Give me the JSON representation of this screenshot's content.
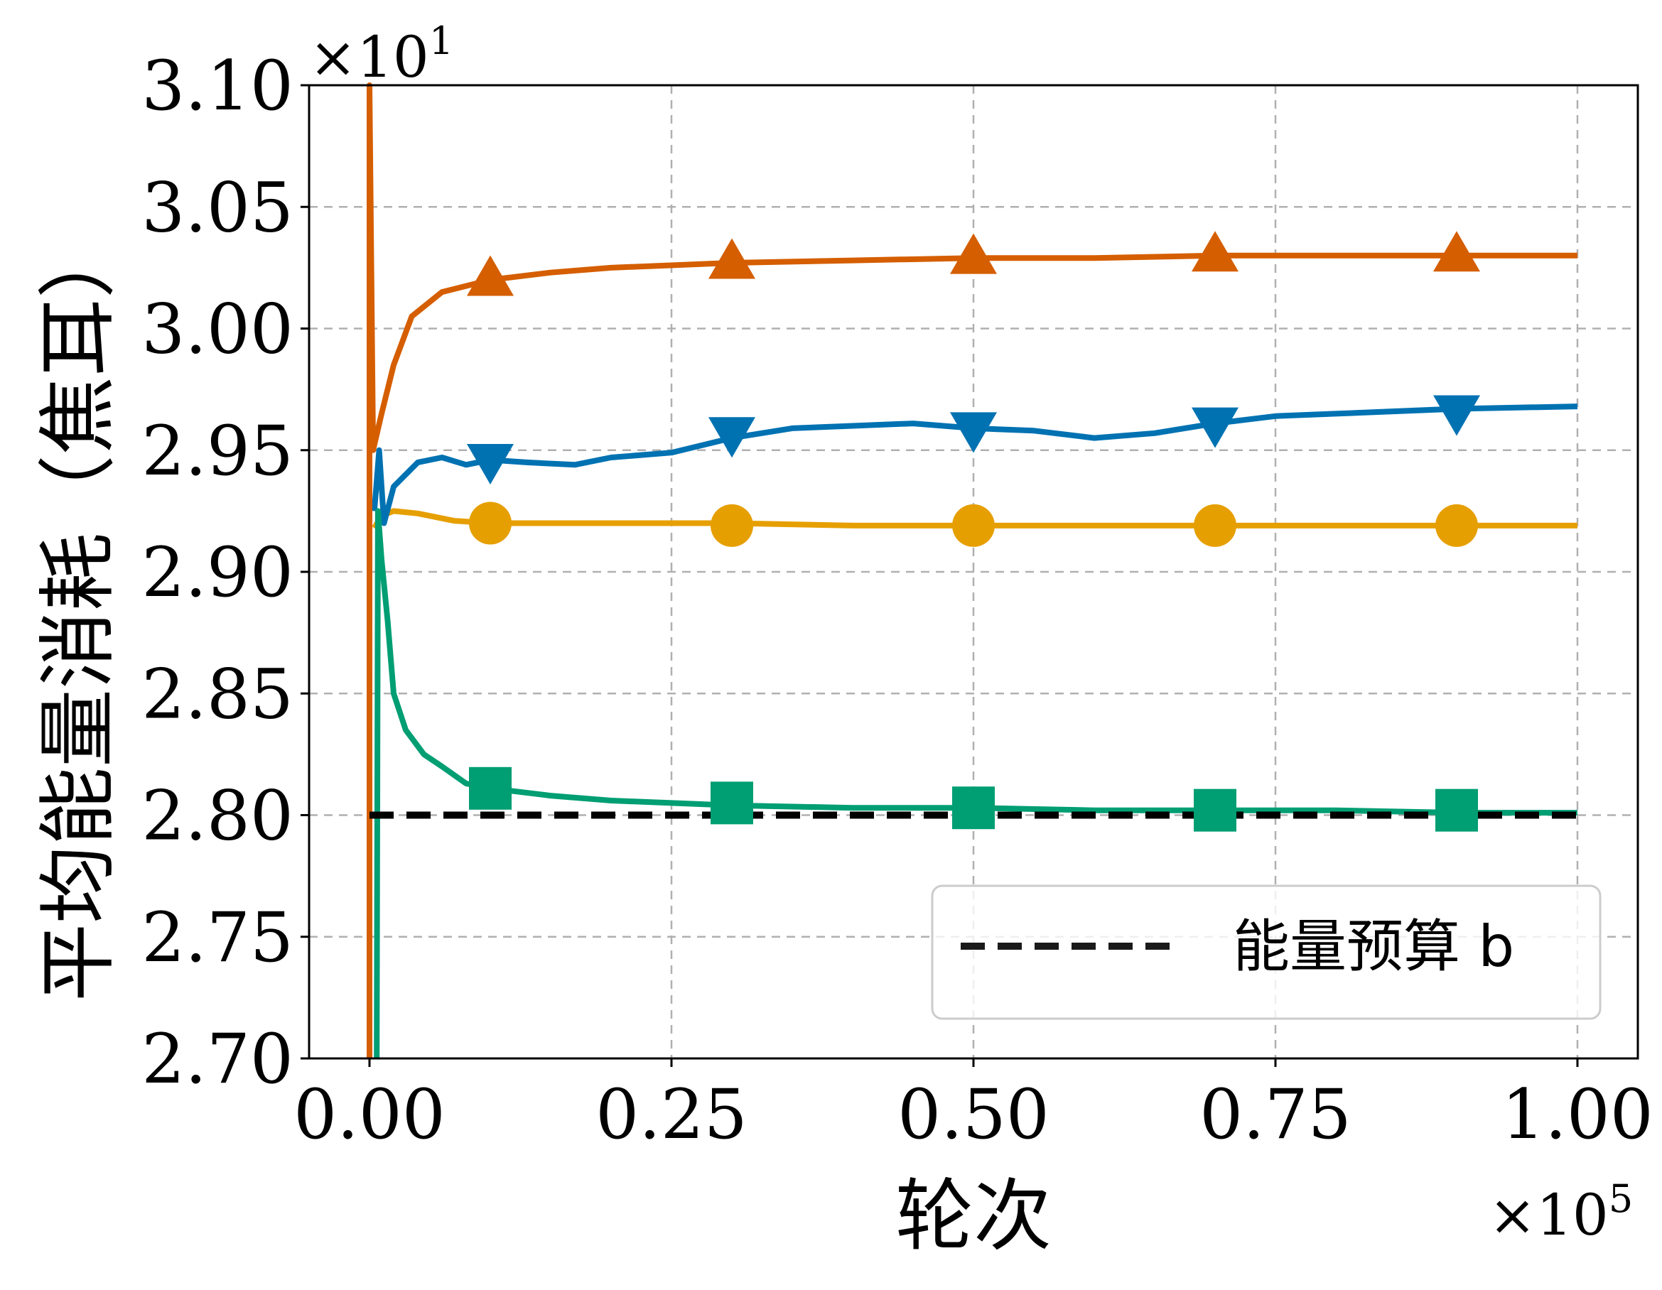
{
  "chart_data": {
    "type": "line",
    "xlabel": "轮次",
    "ylabel": "平均能量消耗（焦耳）",
    "x_multiplier": {
      "base": "×10",
      "exp": "5"
    },
    "y_multiplier": {
      "base": "×10",
      "exp": "1"
    },
    "xlim": [
      -0.05,
      1.05
    ],
    "ylim": [
      2.7,
      3.1
    ],
    "x_ticks": [
      0.0,
      0.25,
      0.5,
      0.75,
      1.0
    ],
    "x_tick_labels": [
      "0.00",
      "0.25",
      "0.50",
      "0.75",
      "1.00"
    ],
    "y_ticks": [
      2.7,
      2.75,
      2.8,
      2.85,
      2.9,
      2.95,
      3.0,
      3.05,
      3.1
    ],
    "y_tick_labels": [
      "2.70",
      "2.75",
      "2.80",
      "2.85",
      "2.90",
      "2.95",
      "3.00",
      "3.05",
      "3.10"
    ],
    "grid": true,
    "legend_position": "lower-right",
    "series": [
      {
        "color": "#D55E00",
        "marker": "triangle-up",
        "points": [
          [
            0.0,
            2.7
          ],
          [
            0.0,
            3.1
          ],
          [
            0.003,
            2.95
          ],
          [
            0.01,
            2.965
          ],
          [
            0.02,
            2.985
          ],
          [
            0.035,
            3.005
          ],
          [
            0.06,
            3.015
          ],
          [
            0.1,
            3.02
          ],
          [
            0.15,
            3.023
          ],
          [
            0.2,
            3.025
          ],
          [
            0.3,
            3.027
          ],
          [
            0.4,
            3.028
          ],
          [
            0.5,
            3.029
          ],
          [
            0.6,
            3.029
          ],
          [
            0.7,
            3.03
          ],
          [
            0.8,
            3.03
          ],
          [
            0.9,
            3.03
          ],
          [
            1.0,
            3.03
          ]
        ],
        "markers_x": [
          0.1,
          0.3,
          0.5,
          0.7,
          0.9
        ],
        "markers_y": [
          3.02,
          3.027,
          3.029,
          3.03,
          3.03
        ]
      },
      {
        "color": "#0072B2",
        "marker": "triangle-down",
        "points": [
          [
            0.004,
            2.925
          ],
          [
            0.008,
            2.95
          ],
          [
            0.012,
            2.92
          ],
          [
            0.02,
            2.935
          ],
          [
            0.04,
            2.945
          ],
          [
            0.06,
            2.947
          ],
          [
            0.08,
            2.944
          ],
          [
            0.1,
            2.946
          ],
          [
            0.13,
            2.945
          ],
          [
            0.17,
            2.944
          ],
          [
            0.2,
            2.947
          ],
          [
            0.25,
            2.949
          ],
          [
            0.3,
            2.955
          ],
          [
            0.35,
            2.959
          ],
          [
            0.4,
            2.96
          ],
          [
            0.45,
            2.961
          ],
          [
            0.5,
            2.959
          ],
          [
            0.55,
            2.958
          ],
          [
            0.6,
            2.955
          ],
          [
            0.65,
            2.957
          ],
          [
            0.7,
            2.961
          ],
          [
            0.75,
            2.964
          ],
          [
            0.8,
            2.965
          ],
          [
            0.9,
            2.967
          ],
          [
            1.0,
            2.968
          ]
        ],
        "markers_x": [
          0.1,
          0.3,
          0.5,
          0.7,
          0.9
        ],
        "markers_y": [
          2.946,
          2.957,
          2.959,
          2.961,
          2.966
        ]
      },
      {
        "color": "#E69F00",
        "marker": "circle",
        "points": [
          [
            0.004,
            2.918
          ],
          [
            0.01,
            2.923
          ],
          [
            0.02,
            2.925
          ],
          [
            0.04,
            2.924
          ],
          [
            0.07,
            2.921
          ],
          [
            0.1,
            2.92
          ],
          [
            0.2,
            2.92
          ],
          [
            0.3,
            2.92
          ],
          [
            0.4,
            2.919
          ],
          [
            0.5,
            2.919
          ],
          [
            0.6,
            2.919
          ],
          [
            0.7,
            2.919
          ],
          [
            0.8,
            2.919
          ],
          [
            0.9,
            2.919
          ],
          [
            1.0,
            2.919
          ]
        ],
        "markers_x": [
          0.1,
          0.3,
          0.5,
          0.7,
          0.9
        ],
        "markers_y": [
          2.92,
          2.919,
          2.919,
          2.919,
          2.919
        ]
      },
      {
        "color": "#009E73",
        "marker": "square",
        "points": [
          [
            0.006,
            2.7
          ],
          [
            0.007,
            2.925
          ],
          [
            0.01,
            2.905
          ],
          [
            0.015,
            2.88
          ],
          [
            0.02,
            2.85
          ],
          [
            0.03,
            2.835
          ],
          [
            0.045,
            2.825
          ],
          [
            0.06,
            2.82
          ],
          [
            0.08,
            2.813
          ],
          [
            0.1,
            2.811
          ],
          [
            0.15,
            2.808
          ],
          [
            0.2,
            2.806
          ],
          [
            0.25,
            2.805
          ],
          [
            0.3,
            2.804
          ],
          [
            0.4,
            2.803
          ],
          [
            0.5,
            2.803
          ],
          [
            0.6,
            2.802
          ],
          [
            0.7,
            2.802
          ],
          [
            0.8,
            2.802
          ],
          [
            0.9,
            2.801
          ],
          [
            1.0,
            2.801
          ]
        ],
        "markers_x": [
          0.1,
          0.3,
          0.5,
          0.7,
          0.9
        ],
        "markers_y": [
          2.811,
          2.805,
          2.803,
          2.802,
          2.802
        ]
      },
      {
        "name": "能量预算 b",
        "color": "#000000",
        "style": "dashed",
        "points": [
          [
            0.0,
            2.8
          ],
          [
            1.0,
            2.8
          ]
        ]
      }
    ]
  }
}
